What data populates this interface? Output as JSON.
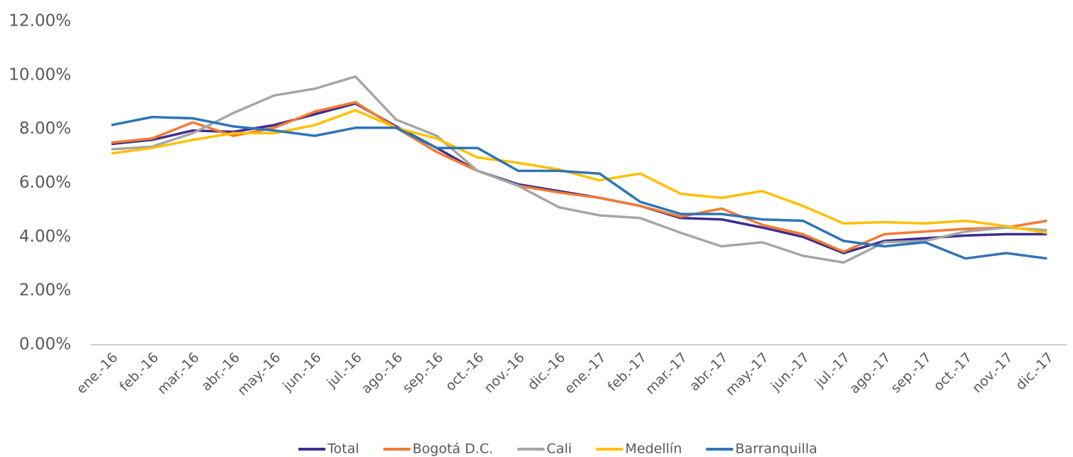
{
  "chart_data": {
    "type": "line",
    "categories": [
      "ene.-16",
      "feb.-16",
      "mar.-16",
      "abr.-16",
      "may.-16",
      "jun.-16",
      "jul.-16",
      "ago.-16",
      "sep.-16",
      "oct.-16",
      "nov.-16",
      "dic.-16",
      "ene.-17",
      "feb.-17",
      "mar.-17",
      "abr.-17",
      "may.-17",
      "jun.-17",
      "jul.-17",
      "ago.-17",
      "sep.-17",
      "oct.-17",
      "nov.-17",
      "dic.-17"
    ],
    "series": [
      {
        "name": "Total",
        "color": "#3f2d8f",
        "values": [
          7.45,
          7.6,
          7.95,
          7.9,
          8.15,
          8.55,
          8.95,
          8.1,
          7.3,
          6.45,
          5.95,
          5.7,
          5.45,
          5.15,
          4.7,
          4.65,
          4.35,
          4.0,
          3.4,
          3.85,
          3.95,
          4.05,
          4.1,
          4.1
        ]
      },
      {
        "name": "Bogotá D.C.",
        "color": "#f47b30",
        "values": [
          7.5,
          7.65,
          8.25,
          7.75,
          8.05,
          8.65,
          9.0,
          8.05,
          7.15,
          6.45,
          5.9,
          5.65,
          5.45,
          5.15,
          4.75,
          5.05,
          4.45,
          4.1,
          3.45,
          4.1,
          4.2,
          4.3,
          4.35,
          4.6
        ]
      },
      {
        "name": "Cali",
        "color": "#a6a6a6",
        "values": [
          7.25,
          7.35,
          7.85,
          8.6,
          9.25,
          9.5,
          9.95,
          8.35,
          7.75,
          6.45,
          5.9,
          5.1,
          4.8,
          4.7,
          4.15,
          3.65,
          3.8,
          3.3,
          3.05,
          3.8,
          3.85,
          4.2,
          4.35,
          4.25
        ]
      },
      {
        "name": "Medellín",
        "color": "#ffc000",
        "values": [
          7.1,
          7.3,
          7.6,
          7.85,
          7.85,
          8.15,
          8.7,
          8.05,
          7.65,
          6.95,
          6.75,
          6.5,
          6.1,
          6.35,
          5.6,
          5.45,
          5.7,
          5.15,
          4.5,
          4.55,
          4.5,
          4.6,
          4.4,
          4.15
        ]
      },
      {
        "name": "Barranquilla",
        "color": "#2e75b6",
        "values": [
          8.15,
          8.45,
          8.4,
          8.1,
          7.95,
          7.75,
          8.05,
          8.05,
          7.3,
          7.3,
          6.45,
          6.45,
          6.35,
          5.3,
          4.85,
          4.85,
          4.65,
          4.6,
          3.85,
          3.65,
          3.8,
          3.2,
          3.4,
          3.2
        ]
      }
    ],
    "ylim": [
      0,
      12
    ],
    "yticks": [
      {
        "value": 0,
        "label": "0.00%"
      },
      {
        "value": 2,
        "label": "2.00%"
      },
      {
        "value": 4,
        "label": "4.00%"
      },
      {
        "value": 6,
        "label": "6.00%"
      },
      {
        "value": 8,
        "label": "8.00%"
      },
      {
        "value": 10,
        "label": "10.00%"
      },
      {
        "value": 12,
        "label": "12.00%"
      }
    ],
    "grid": false,
    "legend": "bottom"
  }
}
